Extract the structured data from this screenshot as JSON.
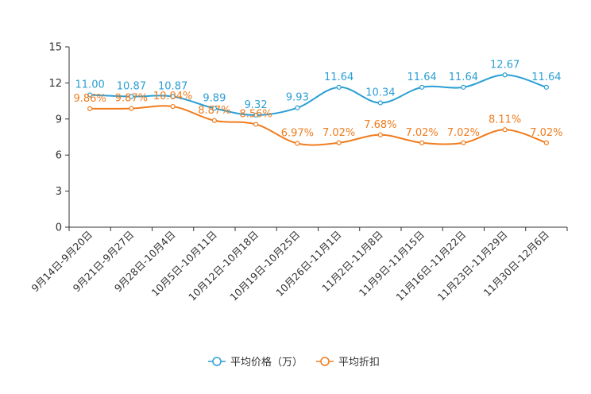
{
  "chart_data": {
    "type": "line",
    "categories": [
      "9月14日-9月20日",
      "9月21日-9月27日",
      "9月28日-10月4日",
      "10月5日-10月11日",
      "10月12日-10月18日",
      "10月19日-10月25日",
      "10月26日-11月1日",
      "11月2日-11月8日",
      "11月9日-11月15日",
      "11月16日-11月22日",
      "11月23日-11月29日",
      "11月30日-12月6日"
    ],
    "series": [
      {
        "name": "平均价格（万）",
        "color": "#2b9fd4",
        "values": [
          11.0,
          10.87,
          10.87,
          9.89,
          9.32,
          9.93,
          11.64,
          10.34,
          11.64,
          11.64,
          12.67,
          11.64
        ],
        "labels": [
          "11.00",
          "10.87",
          "10.87",
          "9.89",
          "9.32",
          "9.93",
          "11.64",
          "10.34",
          "11.64",
          "11.64",
          "12.67",
          "11.64"
        ]
      },
      {
        "name": "平均折扣",
        "color": "#f07c1e",
        "values": [
          9.86,
          9.87,
          10.04,
          8.87,
          8.56,
          6.97,
          7.02,
          7.68,
          7.02,
          7.02,
          8.11,
          7.02
        ],
        "labels": [
          "9.86%",
          "9.87%",
          "10.04%",
          "8.87%",
          "8.56%",
          "6.97%",
          "7.02%",
          "7.68%",
          "7.02%",
          "7.02%",
          "8.11%",
          "7.02%"
        ]
      }
    ],
    "yticks": [
      "0",
      "3",
      "6",
      "9",
      "12",
      "15"
    ],
    "ylim": [
      0,
      15
    ],
    "legend_position": "bottom-center"
  }
}
